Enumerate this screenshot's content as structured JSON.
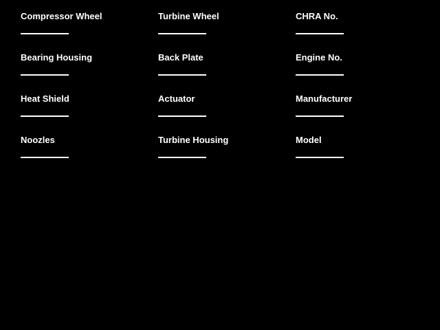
{
  "window": {
    "background_color": "#000000",
    "text_color": "#ffffff",
    "line_color": "#ffffff"
  },
  "form": {
    "columns": [
      {
        "fields": [
          {
            "label": "Compressor Wheel",
            "value": ""
          },
          {
            "label": "Bearing Housing",
            "value": ""
          },
          {
            "label": "Heat Shield",
            "value": ""
          },
          {
            "label": "Noozles",
            "value": ""
          }
        ]
      },
      {
        "fields": [
          {
            "label": "Turbine Wheel",
            "value": ""
          },
          {
            "label": "Back Plate",
            "value": ""
          },
          {
            "label": "Actuator",
            "value": ""
          },
          {
            "label": "Turbine Housing",
            "value": ""
          }
        ]
      },
      {
        "fields": [
          {
            "label": "CHRA No.",
            "value": ""
          },
          {
            "label": "Engine No.",
            "value": ""
          },
          {
            "label": "Manufacturer",
            "value": ""
          },
          {
            "label": "Model",
            "value": ""
          }
        ]
      }
    ]
  }
}
